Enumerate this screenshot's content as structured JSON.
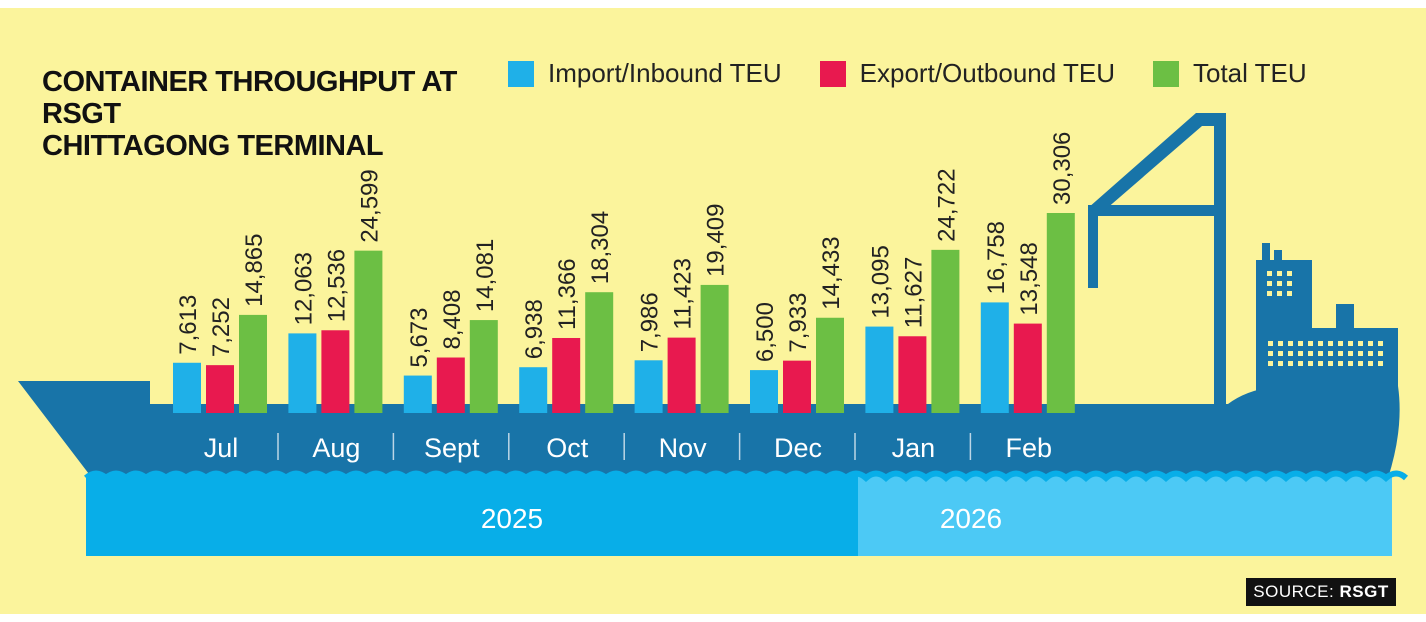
{
  "title_line1": "CONTAINER THROUGHPUT AT RSGT",
  "title_line2": "CHITTAGONG TERMINAL",
  "legend": [
    {
      "label": "Import/Inbound TEU",
      "color": "#1fb0e8"
    },
    {
      "label": "Export/Outbound TEU",
      "color": "#e8194f"
    },
    {
      "label": "Total TEU",
      "color": "#6cbf44"
    }
  ],
  "source_prefix": "SOURCE:",
  "source_name": "RSGT",
  "chart_data": {
    "type": "bar",
    "title": "Container Throughput at RSGT Chittagong Terminal",
    "categories": [
      "Jul",
      "Aug",
      "Sept",
      "Oct",
      "Nov",
      "Dec",
      "Jan",
      "Feb"
    ],
    "year_groups": [
      {
        "label": "2025",
        "months": [
          "Jul",
          "Aug",
          "Sept",
          "Oct",
          "Nov",
          "Dec"
        ]
      },
      {
        "label": "2026",
        "months": [
          "Jan",
          "Feb"
        ]
      }
    ],
    "series": [
      {
        "name": "Import/Inbound TEU",
        "values": [
          7613,
          12063,
          5673,
          6938,
          7986,
          6500,
          13095,
          16758
        ],
        "labels": [
          "7,613",
          "12,063",
          "5,673",
          "6,938",
          "7,986",
          "6,500",
          "13,095",
          "16,758"
        ]
      },
      {
        "name": "Export/Outbound TEU",
        "values": [
          7252,
          12536,
          8408,
          11366,
          11423,
          7933,
          11627,
          13548
        ],
        "labels": [
          "7,252",
          "12,536",
          "8,408",
          "11,366",
          "11,423",
          "7,933",
          "11,627",
          "13,548"
        ]
      },
      {
        "name": "Total TEU",
        "values": [
          14865,
          24599,
          14081,
          18304,
          19409,
          14433,
          24722,
          30306
        ],
        "labels": [
          "14,865",
          "24,599",
          "14,081",
          "18,304",
          "19,409",
          "14,433",
          "24,722",
          "30,306"
        ]
      }
    ],
    "colors": {
      "import": "#1fb0e8",
      "export": "#e8194f",
      "total": "#6cbf44",
      "hull": "#1874a8",
      "water2025": "#08aee8",
      "water2026": "#4cc9f5"
    }
  }
}
